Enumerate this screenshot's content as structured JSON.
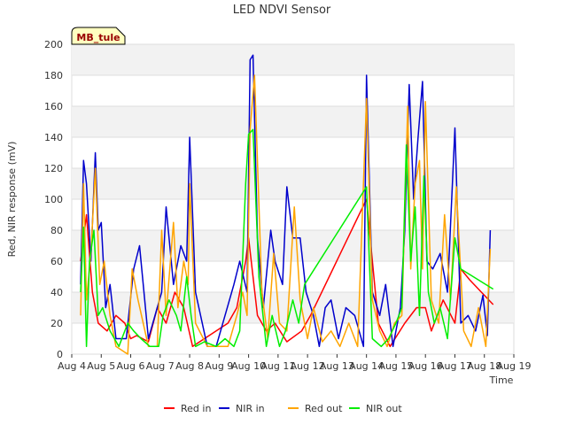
{
  "chart_data": {
    "type": "line",
    "title": "LED NDVI Sensor",
    "xlabel": "Time",
    "ylabel": "Red, NIR response (mV)",
    "annotation": "MB_tule",
    "xlim": [
      4,
      19
    ],
    "ylim": [
      0,
      200
    ],
    "x_ticks": [
      "Aug 4",
      "Aug 5",
      "Aug 6",
      "Aug 7",
      "Aug 8",
      "Aug 9",
      "Aug 10",
      "Aug 11",
      "Aug 12",
      "Aug 13",
      "Aug 14",
      "Aug 15",
      "Aug 16",
      "Aug 17",
      "Aug 18",
      "Aug 19"
    ],
    "y_ticks": [
      0,
      20,
      40,
      60,
      80,
      100,
      120,
      140,
      160,
      180,
      200
    ],
    "grid": true,
    "legend_position": "bottom",
    "series": [
      {
        "name": "Red in",
        "color": "#ff0000",
        "x": [
          4.3,
          4.5,
          4.7,
          4.9,
          5.2,
          5.5,
          5.8,
          6.0,
          6.2,
          6.6,
          6.9,
          7.2,
          7.5,
          7.8,
          8.1,
          8.5,
          8.9,
          9.3,
          9.6,
          9.9,
          10.0,
          10.3,
          10.6,
          10.9,
          11.3,
          11.8,
          12.1,
          14.0,
          14.4,
          14.8,
          15.3,
          15.7,
          16.0,
          16.2,
          16.6,
          17.0,
          17.2,
          17.5,
          18.0,
          18.3
        ],
        "values": [
          60,
          90,
          40,
          20,
          15,
          25,
          20,
          10,
          12,
          8,
          30,
          20,
          40,
          30,
          5,
          10,
          15,
          20,
          30,
          60,
          75,
          25,
          15,
          20,
          8,
          15,
          25,
          100,
          20,
          5,
          20,
          30,
          30,
          15,
          35,
          20,
          55,
          48,
          38,
          32
        ]
      },
      {
        "name": "NIR in",
        "color": "#0000cc",
        "x": [
          4.3,
          4.4,
          4.5,
          4.65,
          4.8,
          4.9,
          5.0,
          5.15,
          5.3,
          5.5,
          5.85,
          6.1,
          6.3,
          6.6,
          6.9,
          7.05,
          7.2,
          7.45,
          7.7,
          7.9,
          8.0,
          8.2,
          8.6,
          8.9,
          9.2,
          9.5,
          9.7,
          9.95,
          10.05,
          10.15,
          10.3,
          10.5,
          10.75,
          10.9,
          11.15,
          11.3,
          11.5,
          11.75,
          11.95,
          12.2,
          12.4,
          12.6,
          12.8,
          13.05,
          13.3,
          13.6,
          13.9,
          14.0,
          14.2,
          14.45,
          14.65,
          14.9,
          15.15,
          15.3,
          15.45,
          15.6,
          15.75,
          15.9,
          16.05,
          16.25,
          16.5,
          16.75,
          17.0,
          17.2,
          17.45,
          17.7,
          17.95,
          18.1,
          18.2
        ],
        "values": [
          45,
          125,
          110,
          60,
          130,
          80,
          85,
          30,
          45,
          10,
          10,
          55,
          70,
          10,
          30,
          40,
          95,
          45,
          70,
          60,
          140,
          40,
          5,
          5,
          25,
          45,
          60,
          40,
          190,
          193,
          75,
          30,
          80,
          60,
          45,
          108,
          75,
          75,
          40,
          25,
          5,
          30,
          35,
          10,
          30,
          25,
          5,
          180,
          40,
          25,
          45,
          5,
          30,
          80,
          174,
          100,
          140,
          176,
          60,
          55,
          65,
          40,
          146,
          20,
          25,
          15,
          38,
          12,
          80
        ]
      },
      {
        "name": "Red out",
        "color": "#ffa500",
        "x": [
          4.3,
          4.4,
          4.5,
          4.65,
          4.8,
          4.95,
          5.1,
          5.3,
          5.5,
          5.9,
          6.05,
          6.25,
          6.6,
          6.9,
          7.05,
          7.2,
          7.45,
          7.6,
          7.8,
          7.95,
          8.0,
          8.2,
          8.6,
          9.0,
          9.3,
          9.6,
          9.8,
          9.95,
          10.05,
          10.2,
          10.45,
          10.65,
          10.85,
          11.05,
          11.3,
          11.55,
          11.75,
          12.0,
          12.2,
          12.5,
          12.8,
          13.1,
          13.4,
          13.7,
          14.0,
          14.2,
          14.45,
          14.7,
          14.95,
          15.2,
          15.4,
          15.5,
          15.65,
          15.8,
          15.9,
          16.0,
          16.2,
          16.45,
          16.65,
          16.85,
          17.05,
          17.3,
          17.55,
          17.8,
          18.05,
          18.2
        ],
        "values": [
          25,
          110,
          35,
          65,
          120,
          45,
          60,
          25,
          5,
          0,
          55,
          35,
          5,
          5,
          80,
          25,
          85,
          30,
          60,
          45,
          110,
          20,
          5,
          5,
          5,
          25,
          40,
          25,
          145,
          180,
          40,
          10,
          65,
          20,
          15,
          95,
          35,
          10,
          30,
          8,
          15,
          5,
          20,
          5,
          165,
          35,
          15,
          5,
          20,
          25,
          160,
          55,
          110,
          125,
          55,
          163,
          35,
          20,
          90,
          35,
          108,
          15,
          5,
          30,
          5,
          68
        ]
      },
      {
        "name": "NIR out",
        "color": "#00ee00",
        "x": [
          4.3,
          4.4,
          4.5,
          4.6,
          4.75,
          4.9,
          5.05,
          5.3,
          5.6,
          5.9,
          6.1,
          6.35,
          6.65,
          6.95,
          7.1,
          7.3,
          7.55,
          7.7,
          7.9,
          8.05,
          8.2,
          8.5,
          8.9,
          9.2,
          9.5,
          9.7,
          9.9,
          10.0,
          10.15,
          10.35,
          10.6,
          10.8,
          11.05,
          11.25,
          11.5,
          11.7,
          11.9,
          14.0,
          14.2,
          14.5,
          14.75,
          15.0,
          15.2,
          15.35,
          15.5,
          15.65,
          15.8,
          15.95,
          16.1,
          16.3,
          16.5,
          16.75,
          17.0,
          17.2,
          18.3
        ],
        "values": [
          40,
          82,
          5,
          60,
          80,
          25,
          30,
          15,
          5,
          20,
          15,
          10,
          5,
          5,
          25,
          35,
          25,
          15,
          50,
          25,
          5,
          8,
          5,
          10,
          5,
          15,
          110,
          142,
          145,
          50,
          5,
          25,
          5,
          15,
          35,
          20,
          45,
          108,
          10,
          5,
          10,
          20,
          30,
          135,
          60,
          95,
          25,
          115,
          40,
          20,
          30,
          10,
          75,
          55,
          42
        ]
      }
    ]
  }
}
